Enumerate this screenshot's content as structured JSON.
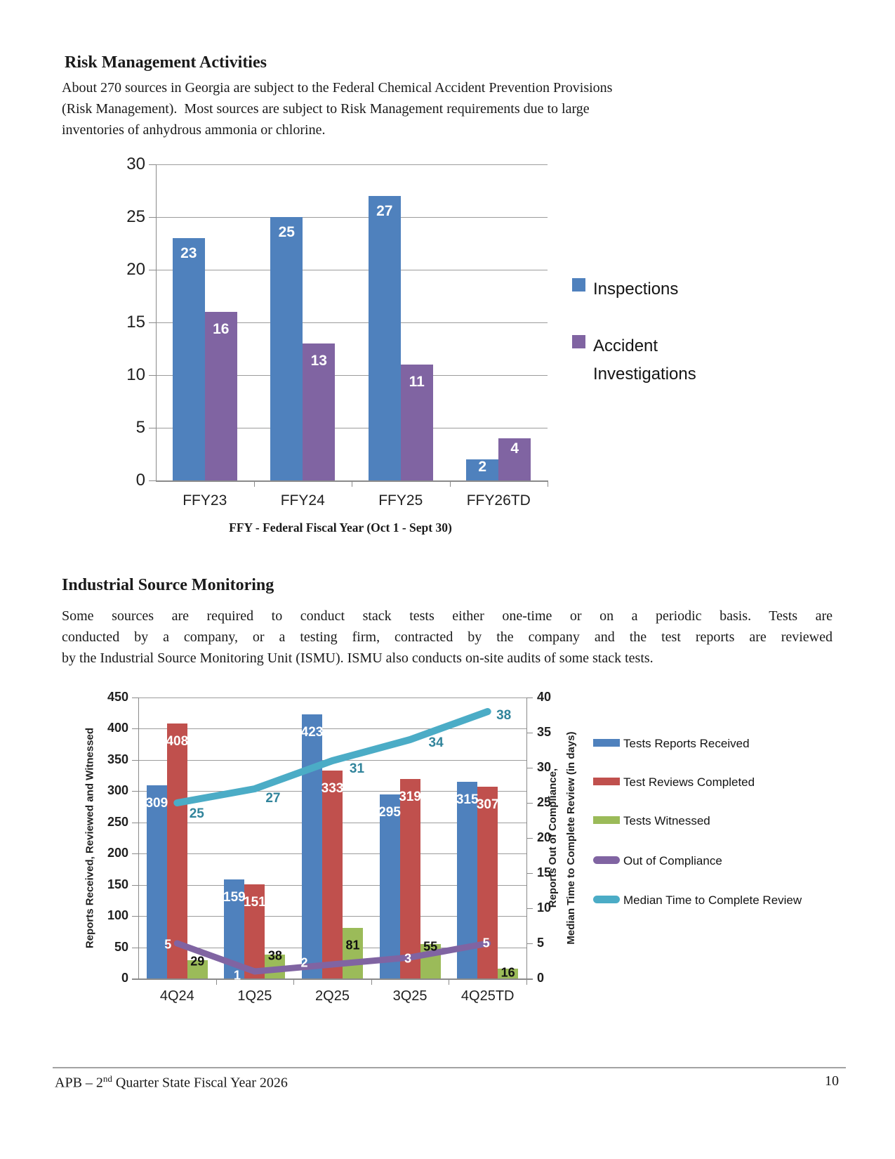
{
  "section1": {
    "heading": "Risk Management Activities",
    "paragraph_lines": [
      "About 270 sources in Georgia are subject to the Federal Chemical Accident Prevention Provisions",
      "(Risk Management).  Most sources are subject to Risk Management requirements due to large",
      "inventories of anhydrous ammonia or chlorine."
    ]
  },
  "section2": {
    "heading": "Industrial Source Monitoring",
    "paragraph_lines": [
      "Some sources are required to conduct stack tests either one-time or on a periodic basis. Tests are",
      "conducted by a company, or a testing firm, contracted by the company and the test reports are reviewed",
      "by the Industrial Source Monitoring Unit (ISMU). ISMU also conducts on-site audits of some stack tests."
    ]
  },
  "footer": {
    "left_prefix": "APB – 2",
    "left_sup": "nd",
    "left_suffix": " Quarter State Fiscal Year 2026",
    "page_number": "10"
  },
  "chart_data": [
    {
      "type": "bar",
      "title": "",
      "categories": [
        "FFY23",
        "FFY24",
        "FFY25",
        "FFY26TD"
      ],
      "series": [
        {
          "name": "Inspections",
          "color": "#4f81bd",
          "values": [
            23,
            25,
            27,
            2
          ]
        },
        {
          "name": "Accident Investigations",
          "color": "#8064a2",
          "values": [
            16,
            13,
            11,
            4
          ]
        }
      ],
      "ylim": [
        0,
        30
      ],
      "yticks": [
        30,
        25,
        20,
        15,
        10,
        5,
        0
      ],
      "grid": true,
      "legend_position": "right",
      "data_label_color": "#ffffff",
      "caption": "FFY - Federal Fiscal Year (Oct 1 - Sept 30)"
    },
    {
      "type": "bar+line",
      "title": "",
      "categories": [
        "4Q24",
        "1Q25",
        "2Q25",
        "3Q25",
        "4Q25TD"
      ],
      "bar_series": [
        {
          "name": "Tests Reports Received",
          "color": "#4f81bd",
          "values": [
            309,
            159,
            423,
            295,
            315
          ],
          "label_color": "#ffffff"
        },
        {
          "name": "Test Reviews Completed",
          "color": "#c0504d",
          "values": [
            408,
            151,
            333,
            319,
            307
          ],
          "label_color": "#ffffff"
        },
        {
          "name": "Tests Witnessed",
          "color": "#9bbb59",
          "values": [
            29,
            38,
            81,
            55,
            16
          ],
          "label_color": "#111111"
        }
      ],
      "line_series": [
        {
          "name": "Out of Compliance",
          "color": "#8064a2",
          "values": [
            5,
            1,
            2,
            3,
            5
          ],
          "axis": "right",
          "label_color": "#ffffff"
        },
        {
          "name": "Median Time to Complete Review",
          "color": "#4bacc6",
          "values": [
            25,
            27,
            31,
            34,
            38
          ],
          "axis": "right",
          "label_color": "#31849b"
        }
      ],
      "left_axis": {
        "label": "Reports Received, Reviewed and Witnessed",
        "min": 0,
        "max": 450,
        "step": 50,
        "ticks": [
          450,
          400,
          350,
          300,
          250,
          200,
          150,
          100,
          50,
          0
        ]
      },
      "right_axis": {
        "label_lines": [
          "Reports Out of Compliance,",
          "Median Time to Complete Review (in days)"
        ],
        "min": 0,
        "max": 40,
        "step": 5,
        "ticks": [
          40,
          35,
          30,
          25,
          20,
          15,
          10,
          5,
          0
        ]
      },
      "grid": true,
      "legend_position": "right"
    }
  ]
}
